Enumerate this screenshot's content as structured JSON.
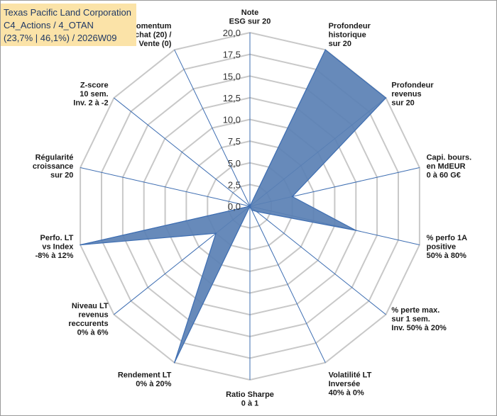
{
  "header": {
    "title": "Texas Pacific Land Corporation",
    "subtitle": "C4_Actions / 4_OTAN",
    "details": "(23,7% | 46,1%) / 2026W09"
  },
  "colors": {
    "fill": "#5a80b4",
    "stroke": "#3e6eb2",
    "grid": "#c8c8c8",
    "spoke": "#3e6eb2",
    "title_bg": "#fbe3a8",
    "title_text": "#1f3864"
  },
  "chart_data": {
    "type": "radar",
    "title": "Texas Pacific Land Corporation",
    "rmin": 0,
    "rmax": 20,
    "step": 2.5,
    "tick_labels": [
      "0,0",
      "2,5",
      "5,0",
      "7,5",
      "10,0",
      "12,5",
      "15,0",
      "17,5",
      "20,0"
    ],
    "axes": [
      {
        "label": [
          "Note",
          "ESG sur 20"
        ],
        "value": 0
      },
      {
        "label": [
          "Profondeur",
          "historique",
          "sur 20"
        ],
        "value": 20
      },
      {
        "label": [
          "Profondeur",
          "revenus",
          "sur 20"
        ],
        "value": 20
      },
      {
        "label": [
          "Capi. bours.",
          "en MdEUR",
          "0 à 60 G€"
        ],
        "value": 5
      },
      {
        "label": [
          "% perfo 1A",
          "positive",
          "50% à 80%"
        ],
        "value": 12.5
      },
      {
        "label": [
          "% perte max.",
          "sur 1 sem.",
          "Inv. 50% à 20%"
        ],
        "value": 1
      },
      {
        "label": [
          "Volatilité LT",
          "Inversée",
          "40% à 0%"
        ],
        "value": 0.5
      },
      {
        "label": [
          "Ratio Sharpe",
          "0 à 1"
        ],
        "value": 0
      },
      {
        "label": [
          "Rendement LT",
          "0% à 20%"
        ],
        "value": 20
      },
      {
        "label": [
          "Niveau LT",
          "revenus",
          "reccurents",
          "0% à 6%"
        ],
        "value": 5
      },
      {
        "label": [
          "Perfo. LT",
          "vs Index",
          "-8% à 12%"
        ],
        "value": 20
      },
      {
        "label": [
          "Régularité",
          "croissance",
          "sur 20"
        ],
        "value": 0
      },
      {
        "label": [
          "Z-score",
          "10 sem.",
          "Inv. 2 à -2"
        ],
        "value": 0
      },
      {
        "label": [
          "Momentum",
          "Achat (20) /",
          "Vente (0)"
        ],
        "value": 0
      }
    ]
  }
}
